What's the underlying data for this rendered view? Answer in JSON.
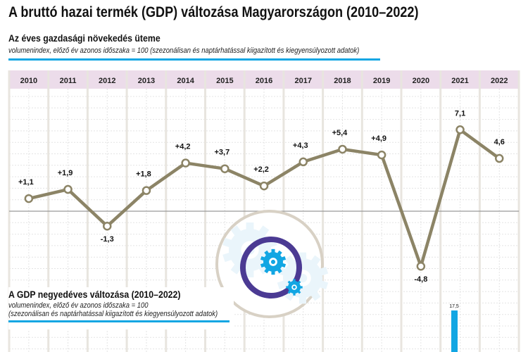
{
  "title": "A bruttó hazai termék (GDP) változása Magyarországon (2010–2022)",
  "colors": {
    "line": "#8c8466",
    "accent": "#12a6e3",
    "header": "#ecdcea",
    "ring": "#4b3a93"
  },
  "icons": [
    "gears-icon"
  ],
  "chart_data": [
    {
      "type": "line",
      "title": "Az éves gazdasági növekedés üteme",
      "subtitle": "volumenindex, előző év azonos időszaka = 100 (szezonálisan és naptárhatással kiigazított és kiegyensúlyozott adatok)",
      "categories": [
        "2010",
        "2011",
        "2012",
        "2013",
        "2014",
        "2015",
        "2016",
        "2017",
        "2018",
        "2019",
        "2020",
        "2021",
        "2022"
      ],
      "values": [
        1.1,
        1.9,
        -1.3,
        1.8,
        4.2,
        3.7,
        2.2,
        4.3,
        5.4,
        4.9,
        -4.8,
        7.1,
        4.6
      ],
      "labels": [
        "+1,1",
        "+1,9",
        "-1,3",
        "+1,8",
        "+4,2",
        "+3,7",
        "+2,2",
        "+4,3",
        "+5,4",
        "+4,9",
        "-4,8",
        "7,1",
        "4,6"
      ],
      "grid": true
    },
    {
      "type": "bar",
      "title": "A GDP negyedéves változása (2010–2022)",
      "subtitle1": "volumenindex, előző év azonos időszaka = 100",
      "subtitle2": "(szezonálisan és naptárhatással kiigazított és kiegyensúlyozott adatok)",
      "visible_values": [
        17.5
      ],
      "visible_labels": [
        "17,5"
      ]
    }
  ]
}
